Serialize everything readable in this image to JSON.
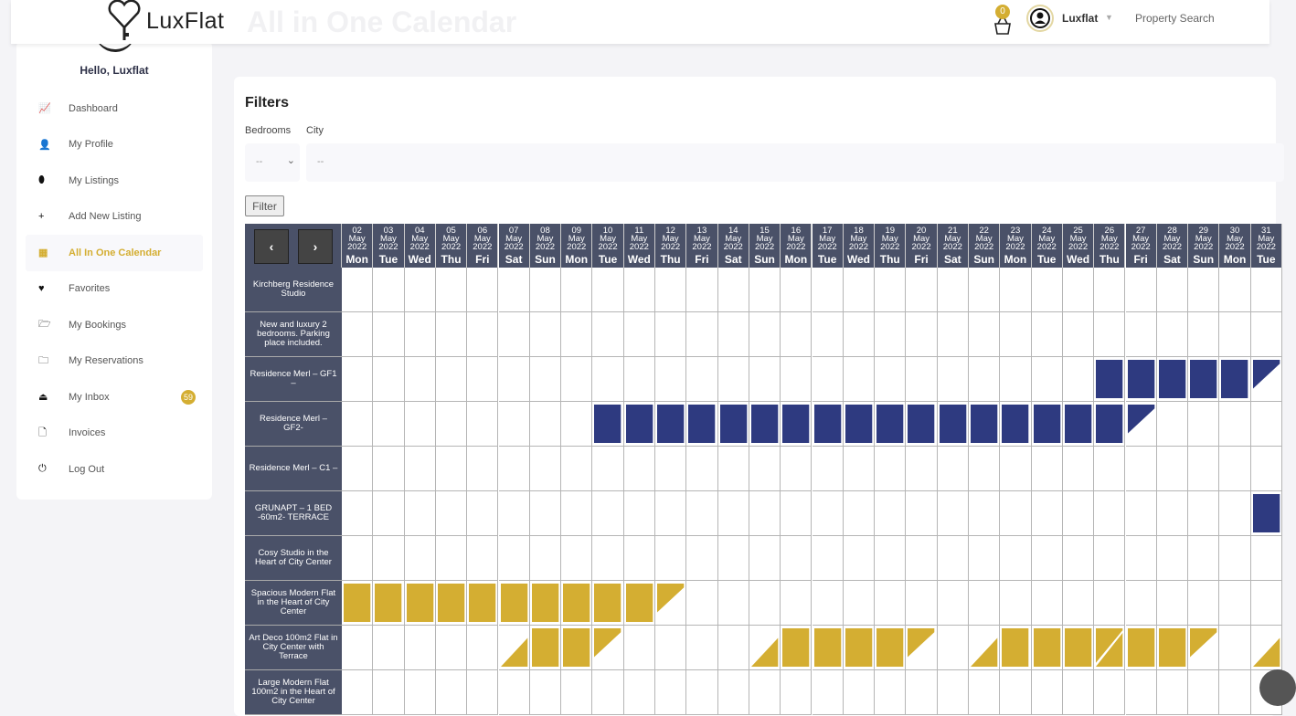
{
  "header": {
    "logo_text": "LuxFlat",
    "page_title": "All in One Calendar",
    "cart_count": "0",
    "user_name": "Luxflat",
    "property_search": "Property Search"
  },
  "sidebar": {
    "greeting": "Hello, Luxflat",
    "items": [
      {
        "label": "Dashboard",
        "icon": "chart-line-icon",
        "glyph": "📈"
      },
      {
        "label": "My Profile",
        "icon": "user-icon",
        "glyph": "👤"
      },
      {
        "label": "My Listings",
        "icon": "map-marker-icon",
        "glyph": "⬮"
      },
      {
        "label": "Add New Listing",
        "icon": "plus-icon",
        "glyph": "+"
      },
      {
        "label": "All In One Calendar",
        "icon": "calendar-icon",
        "glyph": "▦",
        "active": true
      },
      {
        "label": "Favorites",
        "icon": "heart-icon",
        "glyph": "♥"
      },
      {
        "label": "My Bookings",
        "icon": "folder-open-outline-icon",
        "glyph": "🗁"
      },
      {
        "label": "My Reservations",
        "icon": "folder-open-icon",
        "glyph": "🗀"
      },
      {
        "label": "My Inbox",
        "icon": "inbox-icon",
        "glyph": "⏏",
        "badge": "59"
      },
      {
        "label": "Invoices",
        "icon": "file-icon",
        "glyph": "🗋"
      },
      {
        "label": "Log Out",
        "icon": "power-icon",
        "glyph": "⏻"
      }
    ]
  },
  "filters": {
    "title": "Filters",
    "bedrooms_label": "Bedrooms",
    "bedrooms_value": "--",
    "city_label": "City",
    "city_value": "--",
    "filter_button": "Filter"
  },
  "calendar": {
    "prev": "‹",
    "next": "›",
    "month": "May",
    "year": "2022",
    "colors": {
      "blue": "#2e3a80",
      "gold": "#d4ae32"
    },
    "days": [
      [
        "02",
        "Mon"
      ],
      [
        "03",
        "Tue"
      ],
      [
        "04",
        "Wed"
      ],
      [
        "05",
        "Thu"
      ],
      [
        "06",
        "Fri"
      ],
      [
        "07",
        "Sat"
      ],
      [
        "08",
        "Sun"
      ],
      [
        "09",
        "Mon"
      ],
      [
        "10",
        "Tue"
      ],
      [
        "11",
        "Wed"
      ],
      [
        "12",
        "Thu"
      ],
      [
        "13",
        "Fri"
      ],
      [
        "14",
        "Sat"
      ],
      [
        "15",
        "Sun"
      ],
      [
        "16",
        "Mon"
      ],
      [
        "17",
        "Tue"
      ],
      [
        "18",
        "Wed"
      ],
      [
        "19",
        "Thu"
      ],
      [
        "20",
        "Fri"
      ],
      [
        "21",
        "Sat"
      ],
      [
        "22",
        "Sun"
      ],
      [
        "23",
        "Mon"
      ],
      [
        "24",
        "Tue"
      ],
      [
        "25",
        "Wed"
      ],
      [
        "26",
        "Thu"
      ],
      [
        "27",
        "Fri"
      ],
      [
        "28",
        "Sat"
      ],
      [
        "29",
        "Sun"
      ],
      [
        "30",
        "Mon"
      ],
      [
        "31",
        "Tue"
      ]
    ],
    "properties": [
      {
        "name": "Kirchberg Residence Studio",
        "color": "blue",
        "bookings": {}
      },
      {
        "name": "New and luxury 2 bedrooms. Parking place included.",
        "color": "blue",
        "bookings": {}
      },
      {
        "name": "Residence Merl – GF1 –",
        "color": "blue",
        "bookings": {
          "26": "full",
          "27": "full",
          "28": "full",
          "29": "full",
          "30": "full",
          "31": "end"
        }
      },
      {
        "name": "Residence Merl – GF2-",
        "color": "blue",
        "bookings": {
          "10": "full",
          "11": "full",
          "12": "full",
          "13": "full",
          "14": "full",
          "15": "full",
          "16": "full",
          "17": "full",
          "18": "full",
          "19": "full",
          "20": "full",
          "21": "full",
          "22": "full",
          "23": "full",
          "24": "full",
          "25": "full",
          "26": "full",
          "27": "end"
        }
      },
      {
        "name": "Residence Merl – C1 –",
        "color": "blue",
        "bookings": {}
      },
      {
        "name": "GRUNAPT – 1 BED -60m2- TERRACE",
        "color": "blue",
        "bookings": {
          "31": "full"
        }
      },
      {
        "name": "Cosy Studio in the Heart of City Center",
        "color": "blue",
        "bookings": {}
      },
      {
        "name": "Spacious Modern Flat in the Heart of City Center",
        "color": "gold",
        "bookings": {
          "02": "full",
          "03": "full",
          "04": "full",
          "05": "full",
          "06": "full",
          "07": "full",
          "08": "full",
          "09": "full",
          "10": "full",
          "11": "full",
          "12": "end"
        }
      },
      {
        "name": "Art Deco 100m2 Flat in City Center with Terrace",
        "color": "gold",
        "bookings": {
          "07": "start",
          "08": "full",
          "09": "full",
          "10": "end",
          "15": "start",
          "16": "full",
          "17": "full",
          "18": "full",
          "19": "full",
          "20": "end",
          "22": "start",
          "23": "full",
          "24": "full",
          "25": "full",
          "26": "split",
          "27": "full",
          "28": "full",
          "29": "end",
          "31": "start"
        }
      },
      {
        "name": "Large Modern Flat 100m2 in the Heart of City Center",
        "color": "gold",
        "bookings": {}
      }
    ]
  }
}
